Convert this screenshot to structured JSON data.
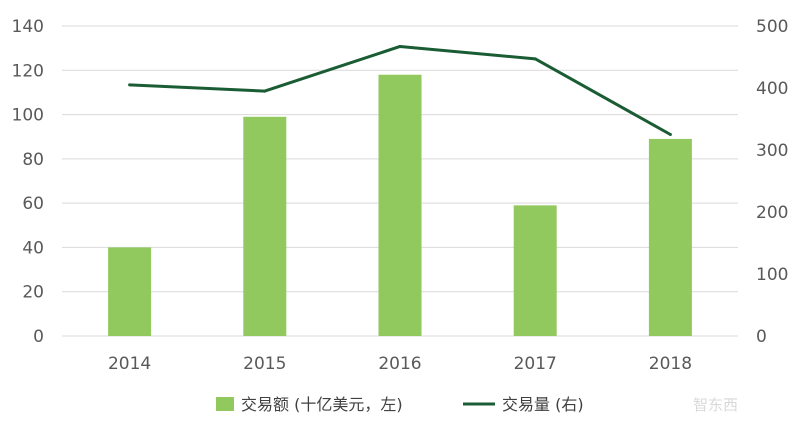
{
  "chart_data": {
    "type": "bar",
    "categories": [
      "2014",
      "2015",
      "2016",
      "2017",
      "2018"
    ],
    "series": [
      {
        "name": "交易额 (十亿美元，左)",
        "type": "bar",
        "axis": "left",
        "values": [
          40,
          99,
          118,
          59,
          89
        ]
      },
      {
        "name": "交易量 (右)",
        "type": "line",
        "axis": "right",
        "values": [
          405,
          395,
          467,
          447,
          325
        ]
      }
    ],
    "y_left": {
      "ylim": [
        0,
        140
      ],
      "ticks": [
        "0",
        "20",
        "40",
        "60",
        "80",
        "100",
        "120",
        "140"
      ]
    },
    "y_right": {
      "ylim": [
        0,
        500
      ],
      "ticks": [
        "0",
        "100",
        "200",
        "300",
        "400",
        "500"
      ]
    },
    "grid": true,
    "legend_position": "bottom",
    "colors": {
      "bar": "#92c95e",
      "line": "#1a5c34",
      "grid": "#d9d9d9"
    }
  },
  "watermark": "智东西"
}
